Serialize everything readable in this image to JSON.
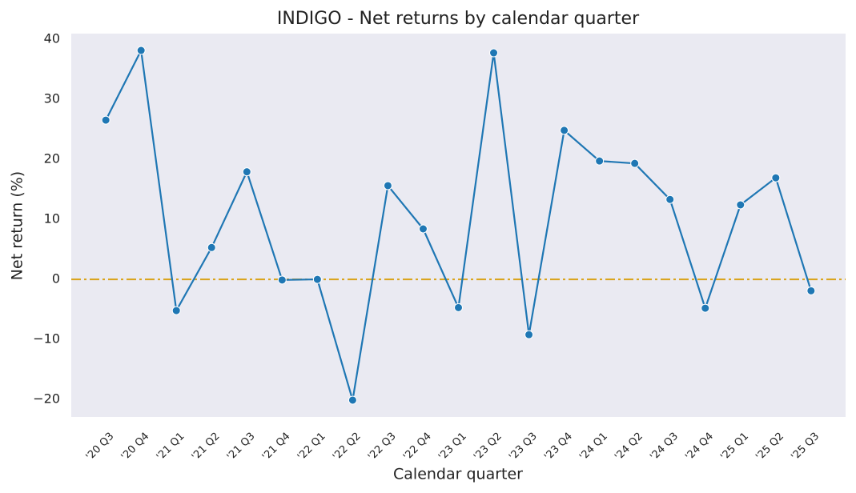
{
  "chart_data": {
    "type": "line",
    "title": "INDIGO - Net returns by calendar quarter",
    "x_label": "Calendar quarter",
    "y_label": "Net return (%)",
    "categories": [
      "'20 Q3",
      "'20 Q4",
      "'21 Q1",
      "'21 Q2",
      "'21 Q3",
      "'21 Q4",
      "'22 Q1",
      "'22 Q2",
      "'22 Q3",
      "'22 Q4",
      "'23 Q1",
      "'23 Q2",
      "'23 Q3",
      "'23 Q4",
      "'24 Q1",
      "'24 Q2",
      "'24 Q3",
      "'24 Q4",
      "'25 Q1",
      "'25 Q2",
      "'25 Q3"
    ],
    "series": [
      {
        "name": "INDIGO",
        "color": "#1f77b4",
        "values": [
          26.5,
          38.1,
          -5.2,
          5.3,
          17.9,
          -0.1,
          0.0,
          -20.1,
          15.6,
          8.4,
          -4.7,
          37.7,
          -9.2,
          24.8,
          19.7,
          19.3,
          13.3,
          -4.8,
          12.4,
          16.9,
          -1.9
        ]
      }
    ],
    "ylim": [
      -22.9,
      40.9
    ],
    "yticks": [
      {
        "value": -20,
        "label": "−20"
      },
      {
        "value": -10,
        "label": "−10"
      },
      0,
      10,
      20,
      30,
      40
    ],
    "reference_line": {
      "value": 0,
      "color": "#daa520"
    },
    "grid": false,
    "legend": false,
    "background": "#eaeaf2"
  }
}
